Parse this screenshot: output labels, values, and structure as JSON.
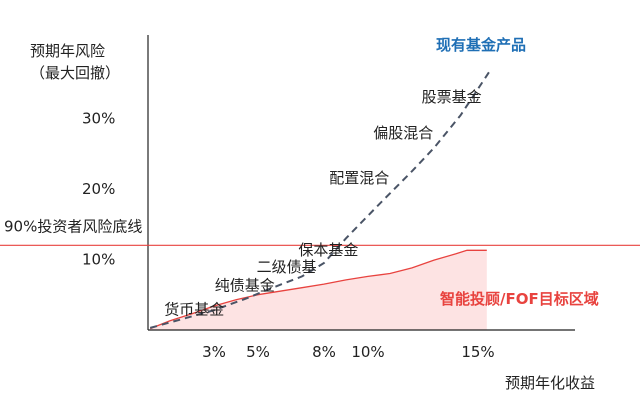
{
  "chart_data": {
    "type": "line",
    "xlabel": "预期年化收益",
    "ylabel": [
      "预期年风险",
      "（最大回撤）"
    ],
    "x_ticks": [
      {
        "value": 3,
        "label": "3%"
      },
      {
        "value": 5,
        "label": "5%"
      },
      {
        "value": 8,
        "label": "8%"
      },
      {
        "value": 10,
        "label": "10%"
      },
      {
        "value": 15,
        "label": "15%"
      }
    ],
    "y_ticks": [
      {
        "value": 10,
        "label": "10%"
      },
      {
        "value": 20,
        "label": "20%"
      },
      {
        "value": 30,
        "label": "30%"
      }
    ],
    "xlim": [
      0,
      18.5
    ],
    "ylim": [
      0,
      41.8
    ],
    "threshold": {
      "y": 12,
      "label": "90%投资者风险底线",
      "color": "#e8433f"
    },
    "series": [
      {
        "name": "现有基金产品",
        "style": "dashed",
        "color": "#4a5466",
        "label_color": "#1f6fb5",
        "points": [
          [
            0.1,
            0.3
          ],
          [
            1.5,
            1.5
          ],
          [
            3,
            2.8
          ],
          [
            4.5,
            4.5
          ],
          [
            5.5,
            5.8
          ],
          [
            7,
            7.6
          ],
          [
            8,
            9.5
          ],
          [
            9,
            13
          ],
          [
            10.5,
            17.8
          ],
          [
            12,
            22.5
          ],
          [
            13,
            25.8
          ],
          [
            14.2,
            30.4
          ],
          [
            15.6,
            37
          ]
        ]
      },
      {
        "name": "智能投顾/FOF目标区域",
        "style": "filled-area",
        "color": "#e8433f",
        "fill": "#fde3e3",
        "label_color": "#e8433f",
        "points": [
          [
            0.1,
            0.2
          ],
          [
            1,
            1.3
          ],
          [
            2,
            2.3
          ],
          [
            3,
            3.4
          ],
          [
            4,
            4.3
          ],
          [
            5,
            5
          ],
          [
            6,
            5.5
          ],
          [
            7,
            6
          ],
          [
            8,
            6.5
          ],
          [
            9,
            7.1
          ],
          [
            10,
            7.6
          ],
          [
            11,
            8
          ],
          [
            12,
            8.8
          ],
          [
            13,
            9.9
          ],
          [
            14,
            10.8
          ],
          [
            14.5,
            11.3
          ],
          [
            15.4,
            11.3
          ]
        ],
        "fill_to_x": 15.4
      }
    ],
    "annotations": [
      {
        "text": "股票基金",
        "x": 13.8,
        "y": 32.3
      },
      {
        "text": "偏股混合",
        "x": 11.6,
        "y": 27.2
      },
      {
        "text": "配置混合",
        "x": 9.6,
        "y": 20.8
      },
      {
        "text": "保本基金",
        "x": 8.2,
        "y": 10.6
      },
      {
        "text": "二级债基",
        "x": 6.3,
        "y": 8.2
      },
      {
        "text": "纯债基金",
        "x": 4.4,
        "y": 5.6
      },
      {
        "text": "货币基金",
        "x": 2.1,
        "y": 2.2
      }
    ]
  }
}
